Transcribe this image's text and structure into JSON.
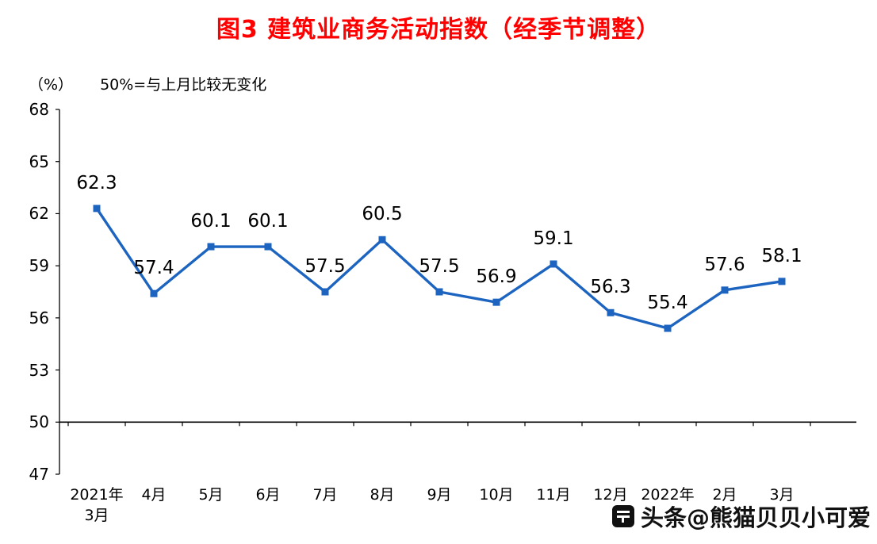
{
  "title": {
    "text": "图3  建筑业商务活动指数（经季节调整）",
    "color": "#ff0000"
  },
  "subtitle": {
    "unit": "（%）",
    "note": "50%=与上月比较无变化"
  },
  "chart_data": {
    "type": "line",
    "title": "图3  建筑业商务活动指数（经季节调整）",
    "ylabel": "（%）",
    "xlabel": "",
    "categories": [
      "2021年\n3月",
      "4月",
      "5月",
      "6月",
      "7月",
      "8月",
      "9月",
      "10月",
      "11月",
      "12月",
      "2022年",
      "2月",
      "3月"
    ],
    "values": [
      62.3,
      57.4,
      60.1,
      60.1,
      57.5,
      60.5,
      57.5,
      56.9,
      59.1,
      56.3,
      55.4,
      57.6,
      58.1
    ],
    "ylim": [
      47,
      68
    ],
    "yticks": [
      47,
      50,
      53,
      56,
      59,
      62,
      65,
      68
    ],
    "baseline": 50,
    "line_color": "#1c64c0",
    "marker": "square",
    "grid": false,
    "legend": "none",
    "data_labels": true
  },
  "watermark": {
    "text": "头条@熊猫贝贝小可爱"
  }
}
